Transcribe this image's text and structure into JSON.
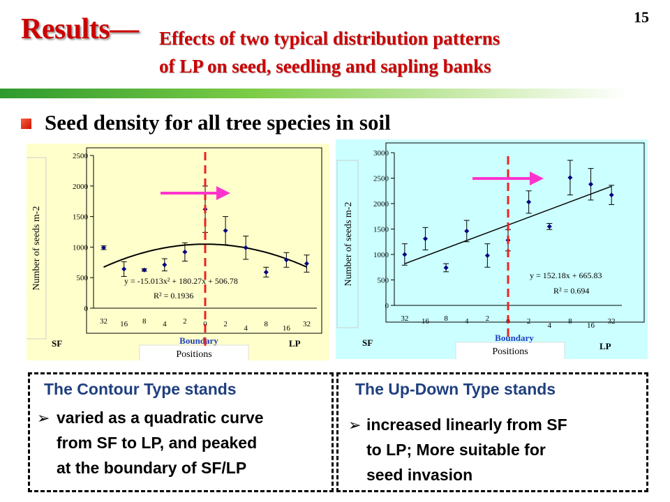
{
  "slide": {
    "number": "15",
    "title_main": "Results—",
    "title_sub_line1": "Effects of two typical distribution patterns",
    "title_sub_line2": "of LP on seed, seedling and sapling banks",
    "section_heading": "Seed density for all tree species in soil"
  },
  "colors": {
    "title": "#cc0000",
    "arrow": "#ff33cc",
    "boundary_line": "#ee2222",
    "point": "#000080",
    "box_heading": "#1f3f7f",
    "left_panel_bg": "#ffffcc",
    "right_panel_bg": "#ccffff"
  },
  "chart_data": [
    {
      "type": "scatter",
      "pattern": "Contour",
      "ylabel": "Number of seeds m-2",
      "xlabel": "Positions",
      "ylim": [
        0,
        2500
      ],
      "yticks": [
        0,
        500,
        1000,
        1500,
        2000,
        2500
      ],
      "x_tick_labels": [
        "32",
        "16",
        "8",
        "4",
        "2",
        "0",
        "2",
        "4",
        "8",
        "16",
        "32"
      ],
      "left_label": "SF",
      "right_label": "LP",
      "boundary_label": "Boundary",
      "values": [
        990,
        640,
        625,
        710,
        920,
        1620,
        1270,
        990,
        590,
        790,
        730
      ],
      "errors": [
        30,
        120,
        20,
        100,
        150,
        380,
        230,
        190,
        80,
        120,
        140
      ],
      "fit": {
        "kind": "quadratic",
        "a": -15.013,
        "b": 180.27,
        "c": 506.78
      },
      "equation": "y = -15.013x² + 180.27x + 506.78",
      "r2": "R² = 0.1936"
    },
    {
      "type": "scatter",
      "pattern": "Up-Down",
      "ylabel": "Number of seeds m-2",
      "xlabel": "Positions",
      "ylim": [
        0,
        3000
      ],
      "yticks": [
        0,
        500,
        1000,
        1500,
        2000,
        2500,
        3000
      ],
      "x_tick_labels": [
        "32",
        "16",
        "8",
        "4",
        "2",
        "0",
        "2",
        "4",
        "8",
        "16",
        "32"
      ],
      "left_label": "SF",
      "right_label": "LP",
      "boundary_label": "Boundary",
      "values": [
        1000,
        1310,
        740,
        1460,
        980,
        1280,
        2030,
        1550,
        2510,
        2380,
        2170
      ],
      "errors": [
        210,
        220,
        80,
        210,
        230,
        210,
        220,
        60,
        340,
        310,
        190
      ],
      "fit": {
        "kind": "linear",
        "a": 152.18,
        "b": 665.83
      },
      "equation": "y = 152.18x + 665.83",
      "r2": "R² = 0.694"
    }
  ],
  "boxes": {
    "left": {
      "heading": "The Contour Type stands",
      "bullet": "➢",
      "lines": [
        "varied as a quadratic curve",
        "from SF to LP, and peaked",
        "at the boundary of SF/LP"
      ]
    },
    "right": {
      "heading": "The Up-Down Type stands",
      "bullet": "➢",
      "lines": [
        "increased linearly from SF",
        "to LP; More suitable for",
        "seed invasion"
      ]
    }
  }
}
